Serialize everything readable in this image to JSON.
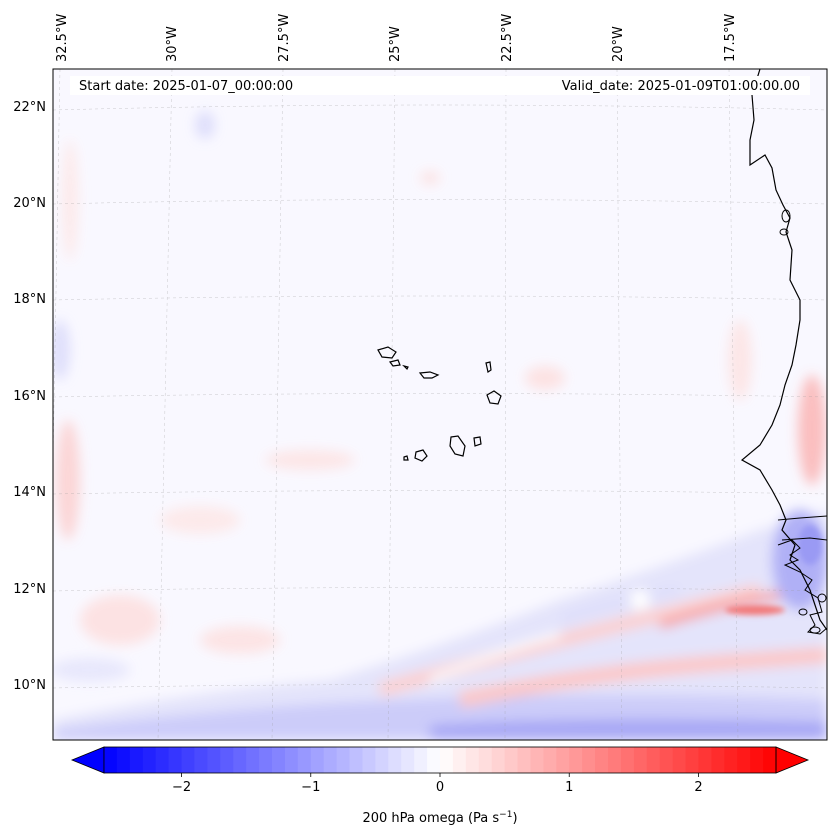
{
  "map": {
    "start_date": "Start date: 2025-01-07_00:00:00",
    "valid_date": "Valid_date: 2025-01-09T01:00:00.00",
    "lon_labels": [
      "32.5°W",
      "30°W",
      "27.5°W",
      "25°W",
      "22.5°W",
      "20°W",
      "17.5°W"
    ],
    "lat_labels": [
      "22°N",
      "20°N",
      "18°N",
      "16°N",
      "14°N",
      "12°N",
      "10°N"
    ],
    "extent": {
      "lon_min": -33.0,
      "lon_max": -15.8,
      "lat_min": 8.9,
      "lat_max": 22.7
    }
  },
  "colorbar": {
    "label_main": "200 hPa omega (Pa s",
    "label_sup": "−1",
    "label_end": ")",
    "ticks": [
      "−2",
      "−1",
      "0",
      "1",
      "2"
    ],
    "tick_values": [
      -2,
      -1,
      0,
      1,
      2
    ],
    "vmin": -2.6,
    "vmax": 2.6,
    "colormap": "bwr",
    "low_color": "#0000ff",
    "mid_color": "#ffffff",
    "high_color": "#ff0000"
  }
}
